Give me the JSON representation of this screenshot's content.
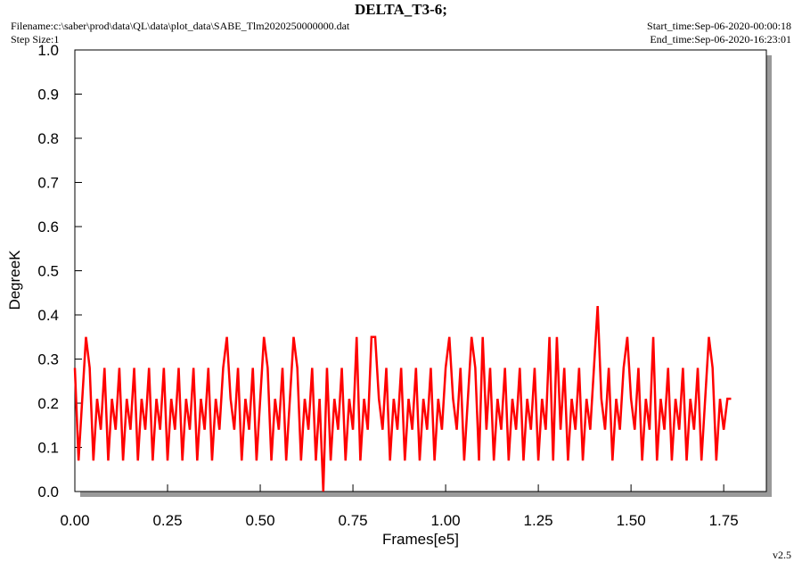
{
  "chart_data": {
    "type": "line",
    "title": "DELTA_T3-6;",
    "filename": "Filename:c:\\saber\\prod\\data\\QL\\data\\plot_data\\SABE_Tlm2020250000000.dat",
    "step_size": "Step Size:1",
    "start_time": "Start_time:Sep-06-2020-00:00:18",
    "end_time": "End_time:Sep-06-2020-16:23:01",
    "version": "v2.5",
    "xlabel": "Frames[e5]",
    "ylabel": "DegreeK",
    "xlim": [
      0,
      1.865
    ],
    "ylim": [
      0,
      1
    ],
    "xticks": [
      {
        "value": 0,
        "label": "0.00"
      },
      0.25,
      {
        "value": 0.5,
        "label": "0.50"
      },
      0.75,
      {
        "value": 1,
        "label": "1.00"
      },
      1.25,
      {
        "value": 1.5,
        "label": "1.50"
      },
      1.75
    ],
    "yticks": [
      {
        "value": 0,
        "label": "0.0"
      },
      0.1,
      0.2,
      0.3,
      0.4,
      0.5,
      0.6,
      0.7,
      0.8,
      0.9,
      {
        "value": 1,
        "label": "1.0"
      }
    ],
    "x": [
      0,
      0.01,
      0.02,
      0.03,
      0.04,
      0.05,
      0.06,
      0.07,
      0.08,
      0.09,
      0.1,
      0.11,
      0.12,
      0.13,
      0.14,
      0.15,
      0.16,
      0.17,
      0.18,
      0.19,
      0.2,
      0.21,
      0.22,
      0.23,
      0.24,
      0.25,
      0.26,
      0.27,
      0.28,
      0.29,
      0.3,
      0.31,
      0.32,
      0.33,
      0.34,
      0.35,
      0.36,
      0.37,
      0.38,
      0.39,
      0.4,
      0.41,
      0.42,
      0.43,
      0.44,
      0.45,
      0.46,
      0.47,
      0.48,
      0.49,
      0.5,
      0.51,
      0.52,
      0.53,
      0.54,
      0.55,
      0.56,
      0.57,
      0.58,
      0.59,
      0.6,
      0.61,
      0.62,
      0.63,
      0.64,
      0.65,
      0.66,
      0.67,
      0.68,
      0.69,
      0.7,
      0.71,
      0.72,
      0.73,
      0.74,
      0.75,
      0.76,
      0.77,
      0.78,
      0.79,
      0.8,
      0.81,
      0.82,
      0.83,
      0.84,
      0.85,
      0.86,
      0.87,
      0.88,
      0.89,
      0.9,
      0.91,
      0.92,
      0.93,
      0.94,
      0.95,
      0.96,
      0.97,
      0.98,
      0.99,
      1,
      1.01,
      1.02,
      1.03,
      1.04,
      1.05,
      1.06,
      1.07,
      1.08,
      1.09,
      1.1,
      1.11,
      1.12,
      1.13,
      1.14,
      1.15,
      1.16,
      1.17,
      1.18,
      1.19,
      1.2,
      1.21,
      1.22,
      1.23,
      1.24,
      1.25,
      1.26,
      1.27,
      1.28,
      1.29,
      1.3,
      1.31,
      1.32,
      1.33,
      1.34,
      1.35,
      1.36,
      1.37,
      1.38,
      1.39,
      1.4,
      1.41,
      1.42,
      1.43,
      1.44,
      1.45,
      1.46,
      1.47,
      1.48,
      1.49,
      1.5,
      1.51,
      1.52,
      1.53,
      1.54,
      1.55,
      1.56,
      1.57,
      1.58,
      1.59,
      1.6,
      1.61,
      1.62,
      1.63,
      1.64,
      1.65,
      1.66,
      1.67,
      1.68,
      1.69,
      1.7,
      1.71,
      1.72,
      1.73,
      1.74,
      1.75,
      1.76,
      1.77
    ],
    "series": [
      {
        "color": "#ff0000",
        "values": [
          0.28,
          0.07,
          0.21,
          0.35,
          0.28,
          0.07,
          0.21,
          0.14,
          0.28,
          0.07,
          0.21,
          0.14,
          0.28,
          0.07,
          0.21,
          0.14,
          0.28,
          0.07,
          0.21,
          0.14,
          0.28,
          0.07,
          0.21,
          0.14,
          0.28,
          0.07,
          0.21,
          0.14,
          0.28,
          0.07,
          0.21,
          0.14,
          0.28,
          0.07,
          0.21,
          0.14,
          0.28,
          0.07,
          0.21,
          0.14,
          0.28,
          0.35,
          0.21,
          0.14,
          0.28,
          0.07,
          0.21,
          0.14,
          0.28,
          0.07,
          0.21,
          0.35,
          0.28,
          0.07,
          0.21,
          0.14,
          0.28,
          0.07,
          0.21,
          0.35,
          0.28,
          0.07,
          0.21,
          0.14,
          0.28,
          0.07,
          0.21,
          0,
          0.28,
          0.07,
          0.21,
          0.14,
          0.28,
          0.07,
          0.21,
          0.14,
          0.35,
          0.07,
          0.21,
          0.14,
          0.35,
          0.35,
          0.21,
          0.14,
          0.28,
          0.07,
          0.21,
          0.14,
          0.28,
          0.07,
          0.21,
          0.14,
          0.28,
          0.07,
          0.21,
          0.14,
          0.28,
          0.07,
          0.21,
          0.14,
          0.28,
          0.35,
          0.21,
          0.14,
          0.28,
          0.07,
          0.21,
          0.35,
          0.28,
          0.07,
          0.35,
          0.14,
          0.28,
          0.07,
          0.21,
          0.14,
          0.28,
          0.07,
          0.21,
          0.14,
          0.28,
          0.07,
          0.21,
          0.14,
          0.28,
          0.07,
          0.21,
          0.14,
          0.35,
          0.07,
          0.35,
          0.14,
          0.28,
          0.07,
          0.21,
          0.14,
          0.28,
          0.07,
          0.21,
          0.14,
          0.28,
          0.42,
          0.21,
          0.14,
          0.28,
          0.07,
          0.21,
          0.14,
          0.28,
          0.35,
          0.21,
          0.14,
          0.28,
          0.07,
          0.21,
          0.14,
          0.35,
          0.07,
          0.21,
          0.14,
          0.28,
          0.07,
          0.21,
          0.14,
          0.28,
          0.07,
          0.21,
          0.14,
          0.28,
          0.07,
          0.21,
          0.35,
          0.28,
          0.07,
          0.21,
          0.14,
          0.21,
          0.21
        ]
      }
    ]
  }
}
